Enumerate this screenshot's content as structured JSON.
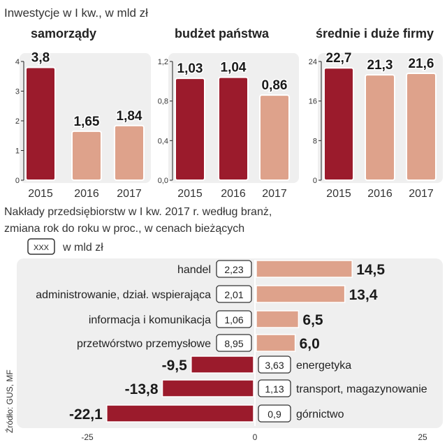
{
  "header": {
    "title": "Inwestycje  w I kw., w mld zł",
    "subtitle_line1": "Nakłady przedsiębiorstw w I kw. 2017 r. według branż,",
    "subtitle_line2": "zmiana rok do roku w proc., w cenach bieżących",
    "legend_box": "XXX",
    "legend_label": "w mld zł",
    "source": "Źródło: GUS, MF"
  },
  "colors": {
    "dark_bar": "#9b1b2c",
    "light_bar": "#dea28b",
    "panel_bg": "#efefef",
    "label_box_border": "#333333"
  },
  "chart_data": [
    {
      "type": "bar",
      "title": "samorządy",
      "categories": [
        "2015",
        "2016",
        "2017"
      ],
      "values": [
        3.8,
        1.65,
        1.84
      ],
      "value_labels": [
        "3,8",
        "1,65",
        "1,84"
      ],
      "highlight_index": 0,
      "ylim": [
        0,
        4
      ],
      "yticks": [
        0,
        1,
        2,
        3,
        4
      ],
      "ytick_labels": [
        "0",
        "1",
        "2",
        "3",
        "4"
      ]
    },
    {
      "type": "bar",
      "title": "budżet państwa",
      "categories": [
        "2015",
        "2016",
        "2017"
      ],
      "values": [
        1.03,
        1.04,
        0.86
      ],
      "value_labels": [
        "1,03",
        "1,04",
        "0,86"
      ],
      "highlight_index": [
        0,
        1
      ],
      "ylim": [
        0,
        1.2
      ],
      "yticks": [
        0,
        0.4,
        0.8,
        1.2
      ],
      "ytick_labels": [
        "0,0",
        "0,4",
        "0,8",
        "1,2"
      ]
    },
    {
      "type": "bar",
      "title": "średnie i duże firmy",
      "categories": [
        "2015",
        "2016",
        "2017"
      ],
      "values": [
        22.7,
        21.3,
        21.6
      ],
      "value_labels": [
        "22,7",
        "21,3",
        "21,6"
      ],
      "highlight_index": 0,
      "ylim": [
        0,
        24
      ],
      "yticks": [
        0,
        8,
        16,
        24
      ],
      "ytick_labels": [
        "0",
        "8",
        "16",
        "24"
      ]
    },
    {
      "type": "bar",
      "orientation": "horizontal",
      "title": "Nakłady przedsiębiorstw w I kw. 2017 r. według branż, zmiana rok do roku w proc., w cenach bieżących",
      "categories": [
        "handel",
        "administrowanie, dział. wspierająca",
        "informacja i komunikacja",
        "przetwórstwo przemysłowe",
        "energetyka",
        "transport, magazynowanie",
        "górnictwo"
      ],
      "values": [
        14.5,
        13.4,
        6.5,
        6.0,
        -9.5,
        -13.8,
        -22.1
      ],
      "value_labels": [
        "14,5",
        "13,4",
        "6,5",
        "6,0",
        "-9,5",
        "-13,8",
        "-22,1"
      ],
      "amounts_mld_zl": [
        "2,23",
        "2,01",
        "1,06",
        "8,95",
        "3,63",
        "1,13",
        "0,9"
      ],
      "xlim": [
        -25,
        25
      ],
      "xticks": [
        -25,
        0,
        25
      ],
      "xtick_labels": [
        "-25",
        "0",
        "25"
      ]
    }
  ]
}
